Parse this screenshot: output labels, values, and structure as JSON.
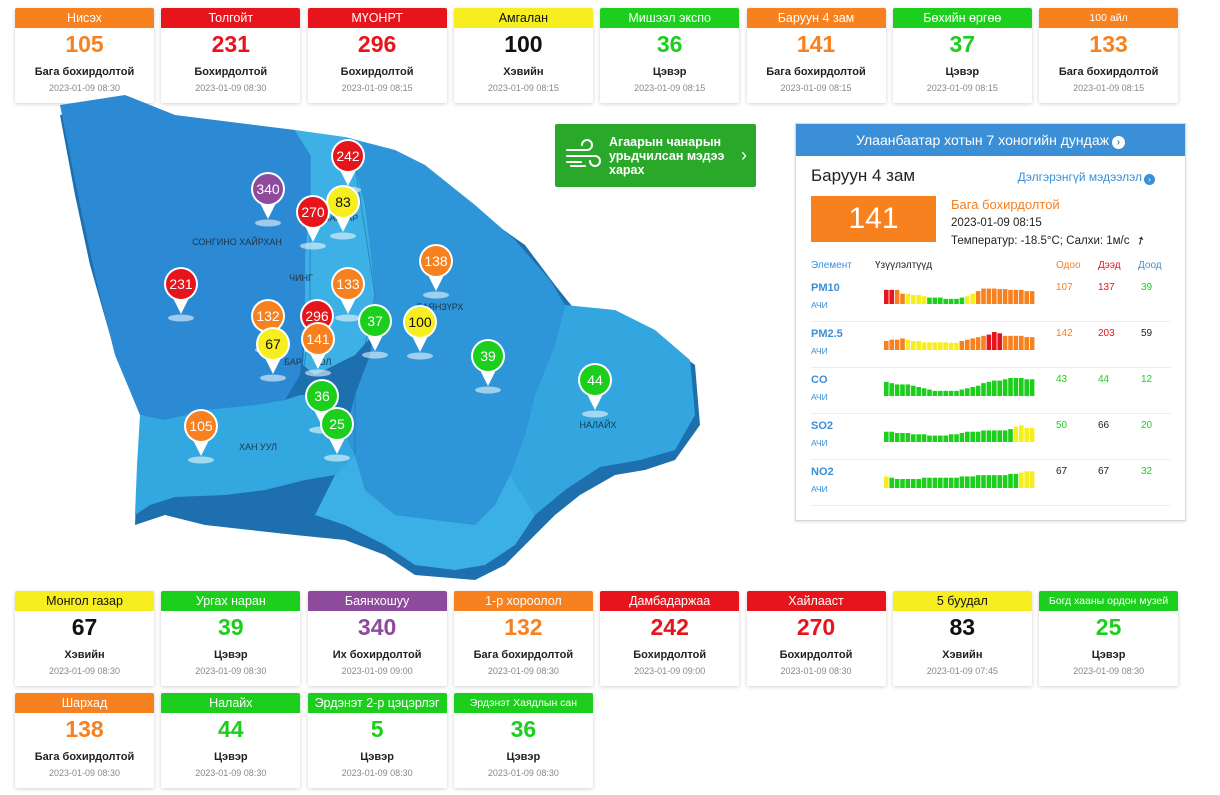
{
  "colors": {
    "orange": "#f7801f",
    "red": "#e8141b",
    "yellow": "#f7ee1f",
    "green": "#1ccf1c",
    "purple": "#8e4b9c",
    "blue": "#3a8fd6"
  },
  "top_stations": [
    {
      "name": "Нисэх",
      "value": "105",
      "level": "Бага бохирдолтой",
      "time": "2023-01-09 08:30",
      "color": "orange"
    },
    {
      "name": "Толгойт",
      "value": "231",
      "level": "Бохирдолтой",
      "time": "2023-01-09 08:30",
      "color": "red"
    },
    {
      "name": "МҮОНРТ",
      "value": "296",
      "level": "Бохирдолтой",
      "time": "2023-01-09 08:15",
      "color": "red"
    },
    {
      "name": "Амгалан",
      "value": "100",
      "level": "Хэвийн",
      "time": "2023-01-09 08:15",
      "color": "yellow"
    },
    {
      "name": "Мишээл экспо",
      "value": "36",
      "level": "Цэвэр",
      "time": "2023-01-09 08:15",
      "color": "green"
    },
    {
      "name": "Баруун 4 зам",
      "value": "141",
      "level": "Бага бохирдолтой",
      "time": "2023-01-09 08:15",
      "color": "orange"
    },
    {
      "name": "Бөхийн өргөө",
      "value": "37",
      "level": "Цэвэр",
      "time": "2023-01-09 08:15",
      "color": "green"
    },
    {
      "name": "100 айл",
      "value": "133",
      "level": "Бага бохирдолтой",
      "time": "2023-01-09 08:15",
      "color": "orange",
      "small": true
    }
  ],
  "bottom_stations_row1": [
    {
      "name": "Монгол газар",
      "value": "67",
      "level": "Хэвийн",
      "time": "2023-01-09 08:30",
      "color": "yellow"
    },
    {
      "name": "Ургах наран",
      "value": "39",
      "level": "Цэвэр",
      "time": "2023-01-09 08:30",
      "color": "green"
    },
    {
      "name": "Баянхошуу",
      "value": "340",
      "level": "Их бохирдолтой",
      "time": "2023-01-09 09:00",
      "color": "purple"
    },
    {
      "name": "1-р хороолол",
      "value": "132",
      "level": "Бага бохирдолтой",
      "time": "2023-01-09 08:30",
      "color": "orange"
    },
    {
      "name": "Дамбадаржаа",
      "value": "242",
      "level": "Бохирдолтой",
      "time": "2023-01-09 09:00",
      "color": "red"
    },
    {
      "name": "Хайлааст",
      "value": "270",
      "level": "Бохирдолтой",
      "time": "2023-01-09 08:30",
      "color": "red"
    },
    {
      "name": "5 буудал",
      "value": "83",
      "level": "Хэвийн",
      "time": "2023-01-09 07:45",
      "color": "yellow"
    },
    {
      "name": "Богд хааны ордон музей",
      "value": "25",
      "level": "Цэвэр",
      "time": "2023-01-09 08:30",
      "color": "green",
      "small": true
    }
  ],
  "bottom_stations_row2": [
    {
      "name": "Шархад",
      "value": "138",
      "level": "Бага бохирдолтой",
      "time": "2023-01-09 08:30",
      "color": "orange"
    },
    {
      "name": "Налайх",
      "value": "44",
      "level": "Цэвэр",
      "time": "2023-01-09 08:30",
      "color": "green"
    },
    {
      "name": "Эрдэнэт 2-р цэцэрлэг",
      "value": "5",
      "level": "Цэвэр",
      "time": "2023-01-09 08:30",
      "color": "green"
    },
    {
      "name": "Эрдэнэт Хаядлын сан",
      "value": "36",
      "level": "Цэвэр",
      "time": "2023-01-09 08:30",
      "color": "green",
      "small": true
    }
  ],
  "map": {
    "district_labels": [
      "СОНГИНО ХАЙРХАН",
      "ХАН УУЛ",
      "БАЯНЗҮРХ",
      "НАЛАЙХ",
      "ЧИНГ",
      "БААТАР",
      "БАР",
      "ОЛ"
    ],
    "pins": [
      {
        "value": "340",
        "color": "purple"
      },
      {
        "value": "242",
        "color": "red"
      },
      {
        "value": "83",
        "color": "yellow"
      },
      {
        "value": "270",
        "color": "red"
      },
      {
        "value": "231",
        "color": "red"
      },
      {
        "value": "138",
        "color": "orange"
      },
      {
        "value": "133",
        "color": "orange"
      },
      {
        "value": "132",
        "color": "orange"
      },
      {
        "value": "296",
        "color": "red"
      },
      {
        "value": "37",
        "color": "green"
      },
      {
        "value": "100",
        "color": "yellow"
      },
      {
        "value": "67",
        "color": "yellow"
      },
      {
        "value": "141",
        "color": "orange"
      },
      {
        "value": "39",
        "color": "green"
      },
      {
        "value": "44",
        "color": "green"
      },
      {
        "value": "36",
        "color": "green"
      },
      {
        "value": "105",
        "color": "orange"
      },
      {
        "value": "25",
        "color": "green"
      }
    ]
  },
  "forecast": {
    "text": "Агаарын чанарын урьдчилсан мэдээ харах",
    "chevron": "›",
    "icon": "wind-icon"
  },
  "panel": {
    "title": "Улаанбаатар хотын 7 хоногийн дундаж",
    "station": "Баруун 4 зам",
    "detail_link": "Дэлгэрэнгүй мэдээлэл",
    "aqi": "141",
    "level": "Бага бохирдолтой",
    "time": "2023-01-09 08:15",
    "weather": "Температур: -18.5°C; Салхи: 1м/с",
    "headers": {
      "element": "Элемент",
      "index": "Үзүүлэлтүүд",
      "now": "Одоо",
      "max": "Дээд",
      "min": "Доод"
    },
    "pollutants": [
      {
        "name": "PM10",
        "unit": "АЧИ",
        "now": "107",
        "max": "137",
        "min": "39",
        "now_color": "orange",
        "max_color": "red",
        "min_color": "green",
        "bars": [
          3,
          3,
          2,
          2,
          1,
          1,
          1,
          1,
          0,
          0,
          0,
          0,
          0,
          0,
          0,
          1,
          1,
          2,
          2,
          2,
          2,
          2,
          2,
          2,
          2,
          2,
          2,
          2
        ],
        "levels": [
          55,
          55,
          55,
          40,
          40,
          35,
          35,
          30,
          25,
          25,
          25,
          20,
          20,
          20,
          25,
          30,
          40,
          50,
          60,
          60,
          60,
          58,
          58,
          55,
          55,
          55,
          50,
          50
        ]
      },
      {
        "name": "PM2.5",
        "unit": "АЧИ",
        "now": "142",
        "max": "203",
        "min": "59",
        "now_color": "orange",
        "max_color": "red",
        "min_color": "black",
        "bars": [
          2,
          2,
          2,
          2,
          1,
          1,
          1,
          1,
          1,
          1,
          1,
          1,
          1,
          1,
          2,
          2,
          2,
          2,
          2,
          3,
          3,
          3,
          2,
          2,
          2,
          2,
          2,
          2
        ],
        "levels": [
          35,
          40,
          40,
          45,
          40,
          35,
          35,
          30,
          30,
          30,
          30,
          30,
          28,
          28,
          35,
          40,
          45,
          50,
          55,
          60,
          70,
          65,
          55,
          55,
          55,
          55,
          50,
          50
        ]
      },
      {
        "name": "CO",
        "unit": "АЧИ",
        "now": "43",
        "max": "44",
        "min": "12",
        "now_color": "green",
        "max_color": "green",
        "min_color": "green",
        "bars": [
          0,
          0,
          0,
          0,
          0,
          0,
          0,
          0,
          0,
          0,
          0,
          0,
          0,
          0,
          0,
          0,
          0,
          0,
          0,
          0,
          0,
          0,
          0,
          0,
          0,
          0,
          0,
          0
        ],
        "levels": [
          55,
          50,
          45,
          45,
          45,
          40,
          35,
          30,
          25,
          20,
          20,
          20,
          20,
          20,
          25,
          30,
          35,
          40,
          50,
          55,
          60,
          60,
          65,
          70,
          70,
          70,
          65,
          65
        ]
      },
      {
        "name": "SO2",
        "unit": "АЧИ",
        "now": "50",
        "max": "66",
        "min": "20",
        "now_color": "green",
        "max_color": "black",
        "min_color": "green",
        "bars": [
          0,
          0,
          0,
          0,
          0,
          0,
          0,
          0,
          0,
          0,
          0,
          0,
          0,
          0,
          0,
          0,
          0,
          0,
          0,
          0,
          0,
          0,
          0,
          0,
          1,
          1,
          1,
          1
        ],
        "levels": [
          40,
          40,
          35,
          35,
          35,
          30,
          30,
          30,
          25,
          25,
          25,
          25,
          30,
          30,
          35,
          40,
          40,
          40,
          45,
          45,
          45,
          45,
          45,
          50,
          60,
          65,
          55,
          55
        ]
      },
      {
        "name": "NO2",
        "unit": "АЧИ",
        "now": "67",
        "max": "67",
        "min": "32",
        "now_color": "black",
        "max_color": "black",
        "min_color": "green",
        "bars": [
          1,
          0,
          0,
          0,
          0,
          0,
          0,
          0,
          0,
          0,
          0,
          0,
          0,
          0,
          0,
          0,
          0,
          0,
          0,
          0,
          0,
          0,
          0,
          0,
          0,
          1,
          1,
          1
        ],
        "levels": [
          45,
          40,
          35,
          35,
          35,
          35,
          35,
          40,
          40,
          40,
          40,
          40,
          40,
          40,
          45,
          45,
          45,
          50,
          50,
          50,
          50,
          50,
          50,
          55,
          55,
          60,
          65,
          65
        ]
      }
    ]
  }
}
